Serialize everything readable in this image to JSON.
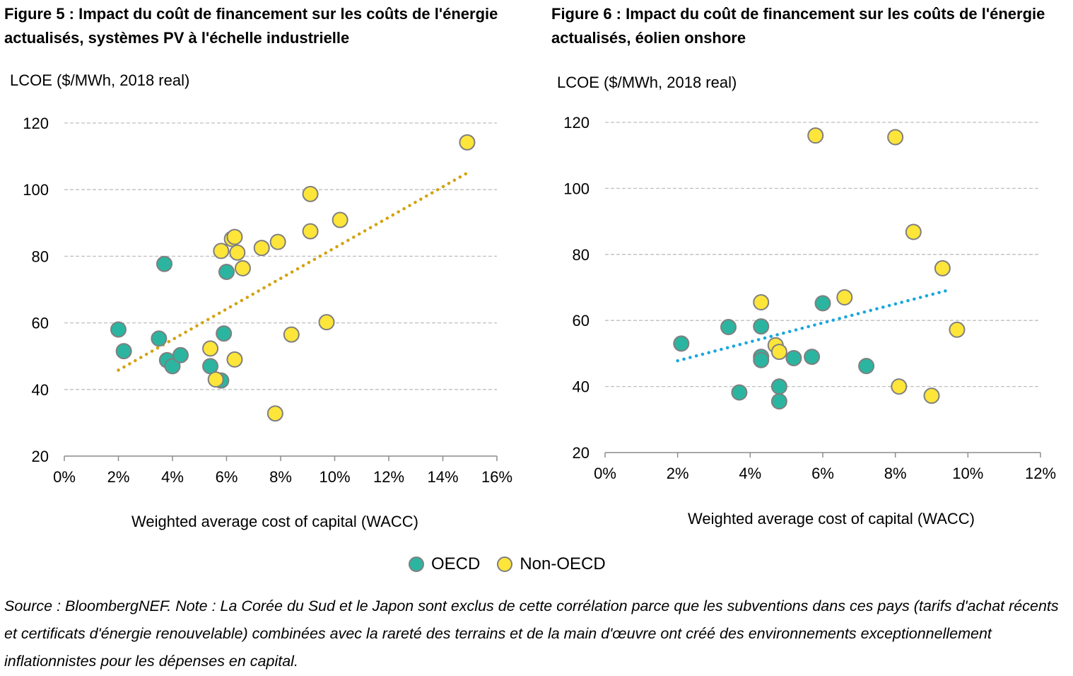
{
  "colors": {
    "oecd": "#2bb5a0",
    "non_oecd": "#fde53a",
    "marker_border": "#7f7f7f",
    "trend_left": "#d4a20f",
    "trend_right": "#1aa7dc",
    "grid": "#bfbfbf"
  },
  "legend": {
    "oecd": "OECD",
    "non_oecd": "Non-OECD"
  },
  "note": "Source : BloombergNEF. Note : La Corée du Sud et le Japon sont exclus de cette corrélation parce que les subventions dans ces pays (tarifs d'achat récents et certificats d'énergie renouvelable) combinées avec la rareté des terrains et de la main d'œuvre ont créé des environnements exceptionnellement inflationnistes pour les dépenses en capital.",
  "chart_data": [
    {
      "type": "scatter",
      "title": "Figure 5 : Impact du coût de financement sur les coûts de l'énergie actualisés, systèmes PV à l'échelle industrielle",
      "ylabel": "LCOE ($/MWh,  2018 real)",
      "xlabel": "Weighted average cost of capital (WACC)",
      "xlim": [
        0,
        16
      ],
      "ylim": [
        20,
        120
      ],
      "xticks": [
        "0%",
        "2%",
        "4%",
        "6%",
        "8%",
        "10%",
        "12%",
        "14%",
        "16%"
      ],
      "yticks": [
        "20",
        "40",
        "60",
        "80",
        "100",
        "120"
      ],
      "grid": "horizontal dashed",
      "trendline": {
        "x": [
          2.0,
          14.9
        ],
        "y": [
          45.8,
          105.0
        ]
      },
      "series": [
        {
          "name": "OECD",
          "points": [
            [
              2.0,
              58
            ],
            [
              2.2,
              51.5
            ],
            [
              3.5,
              55.3
            ],
            [
              3.7,
              77.7
            ],
            [
              3.8,
              48.8
            ],
            [
              4.0,
              47
            ],
            [
              4.3,
              50.3
            ],
            [
              5.4,
              47
            ],
            [
              5.8,
              42.7
            ],
            [
              5.9,
              56.8
            ],
            [
              6.0,
              75.3
            ]
          ]
        },
        {
          "name": "Non-OECD",
          "points": [
            [
              5.4,
              52.3
            ],
            [
              5.6,
              43
            ],
            [
              5.8,
              81.6
            ],
            [
              6.2,
              85.2
            ],
            [
              6.3,
              85.8
            ],
            [
              6.4,
              81.1
            ],
            [
              6.3,
              49
            ],
            [
              6.6,
              76.4
            ],
            [
              7.3,
              82.5
            ],
            [
              7.8,
              32.8
            ],
            [
              7.9,
              84.3
            ],
            [
              8.4,
              56.5
            ],
            [
              9.1,
              87.5
            ],
            [
              9.1,
              98.7
            ],
            [
              9.7,
              60.2
            ],
            [
              10.2,
              90.9
            ],
            [
              14.9,
              114.2
            ]
          ]
        }
      ]
    },
    {
      "type": "scatter",
      "title": "Figure 6 : Impact du coût de financement sur les coûts de l'énergie actualisés, éolien onshore",
      "ylabel": "LCOE ($/MWh,  2018 real)",
      "xlabel": "Weighted average cost of capital (WACC)",
      "xlim": [
        0,
        12
      ],
      "ylim": [
        20,
        120
      ],
      "xticks": [
        "0%",
        "2%",
        "4%",
        "6%",
        "8%",
        "10%",
        "12%"
      ],
      "yticks": [
        "20",
        "40",
        "60",
        "80",
        "100",
        "120"
      ],
      "grid": "horizontal dashed",
      "trendline": {
        "x": [
          2.0,
          9.5
        ],
        "y": [
          47.8,
          69.3
        ]
      },
      "series": [
        {
          "name": "OECD",
          "points": [
            [
              2.1,
              53
            ],
            [
              3.4,
              58
            ],
            [
              3.7,
              38.2
            ],
            [
              4.3,
              58.2
            ],
            [
              4.3,
              49
            ],
            [
              4.3,
              48
            ],
            [
              4.8,
              40
            ],
            [
              4.8,
              35.5
            ],
            [
              5.2,
              48.6
            ],
            [
              5.7,
              49
            ],
            [
              6.0,
              65.2
            ],
            [
              7.2,
              46.2
            ]
          ]
        },
        {
          "name": "Non-OECD",
          "points": [
            [
              4.3,
              65.5
            ],
            [
              4.7,
              52.5
            ],
            [
              4.8,
              50.5
            ],
            [
              5.8,
              116
            ],
            [
              6.6,
              67
            ],
            [
              8.0,
              115.5
            ],
            [
              8.1,
              40
            ],
            [
              8.5,
              86.8
            ],
            [
              9.0,
              37.2
            ],
            [
              9.3,
              75.8
            ],
            [
              9.7,
              57.2
            ]
          ]
        }
      ]
    }
  ]
}
